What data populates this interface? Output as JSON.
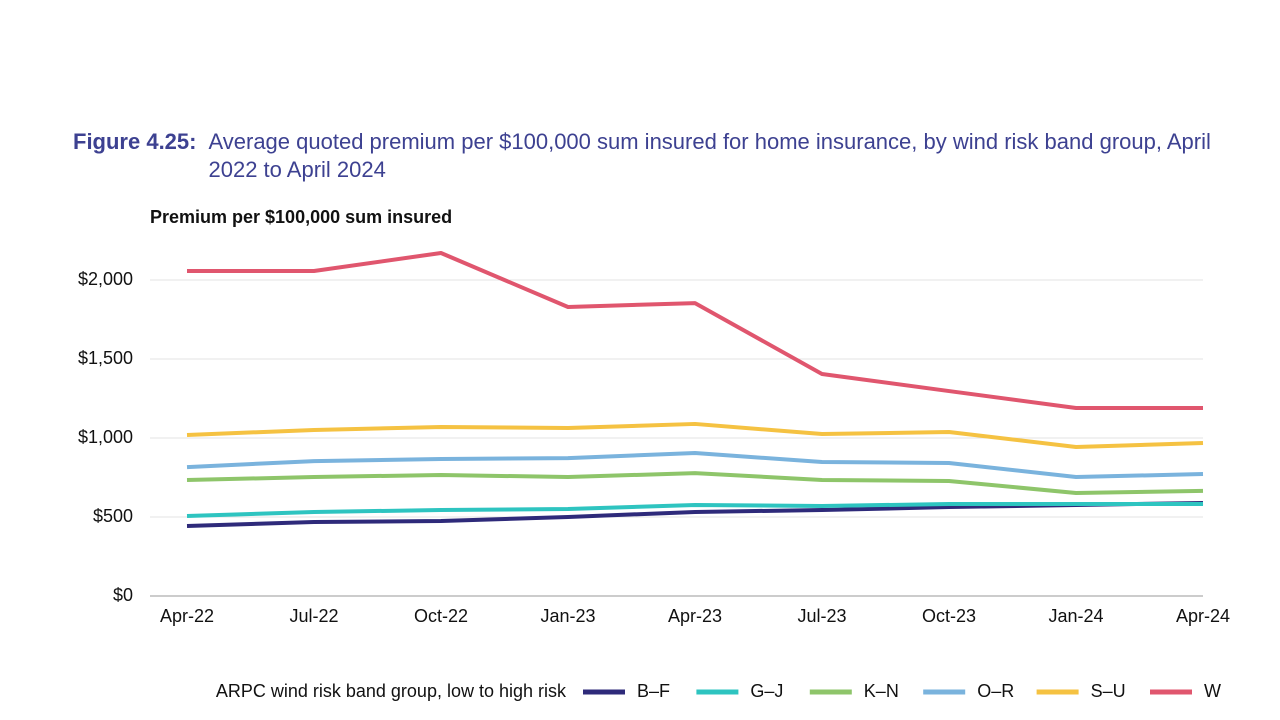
{
  "chart_data": {
    "type": "line",
    "title_label": "Figure 4.25:",
    "title": "Average quoted premium per $100,000 sum insured for home insurance, by wind risk band group, April 2022 to April 2024",
    "y_axis_label": "Premium per $100,000 sum insured",
    "legend_title": "ARPC wind risk band group, low to high risk",
    "categories": [
      "Apr-22",
      "Jul-22",
      "Oct-22",
      "Jan-23",
      "Apr-23",
      "Jul-23",
      "Oct-23",
      "Jan-24",
      "Apr-24"
    ],
    "ylim": [
      0,
      2000
    ],
    "yticks": [
      {
        "value": 0,
        "label": "$0"
      },
      {
        "value": 500,
        "label": "$500"
      },
      {
        "value": 1000,
        "label": "$1,000"
      },
      {
        "value": 1500,
        "label": "$1,500"
      },
      {
        "value": 2000,
        "label": "$2,000"
      }
    ],
    "grid": true,
    "series": [
      {
        "name": "B–F",
        "color": "#2e2a7a",
        "values": [
          443,
          468,
          475,
          500,
          532,
          544,
          563,
          576,
          589
        ]
      },
      {
        "name": "G–J",
        "color": "#2ec4c0",
        "values": [
          506,
          532,
          544,
          551,
          576,
          570,
          582,
          582,
          582
        ]
      },
      {
        "name": "K–N",
        "color": "#8ec56a",
        "values": [
          734,
          753,
          766,
          753,
          778,
          734,
          728,
          652,
          665
        ]
      },
      {
        "name": "O–R",
        "color": "#7ab3dd",
        "values": [
          816,
          854,
          867,
          873,
          905,
          848,
          842,
          753,
          772
        ]
      },
      {
        "name": "S–U",
        "color": "#f5c242",
        "values": [
          1019,
          1051,
          1070,
          1063,
          1089,
          1025,
          1038,
          943,
          968
        ]
      },
      {
        "name": "W",
        "color": "#e0566e",
        "values": [
          2057,
          2057,
          2171,
          1829,
          1854,
          1405,
          1297,
          1190,
          1190
        ]
      }
    ]
  }
}
